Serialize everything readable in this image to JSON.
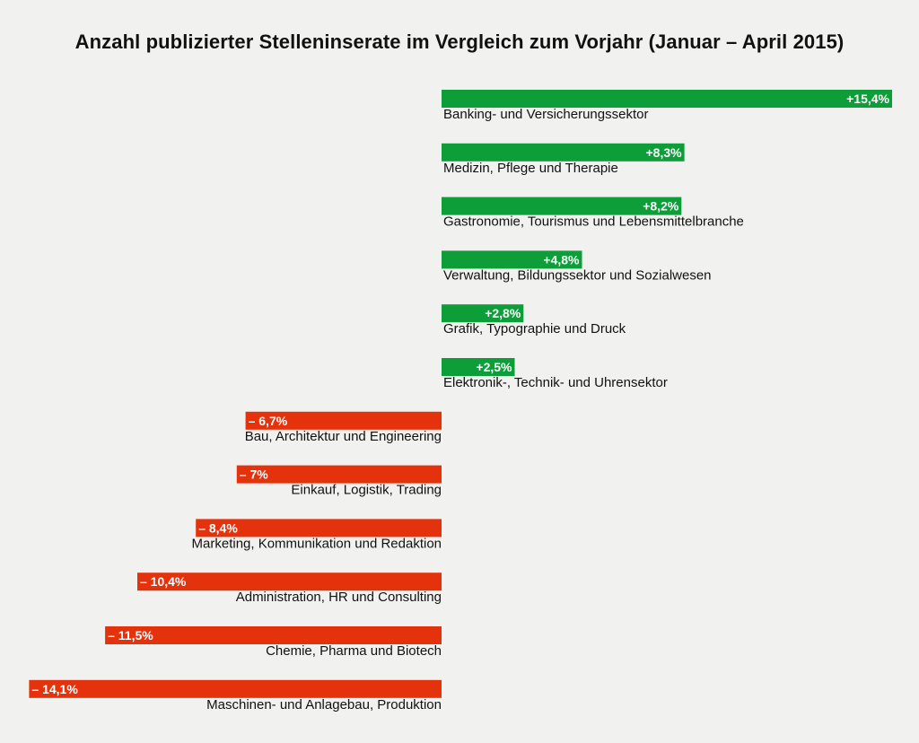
{
  "chart_data": {
    "type": "bar",
    "orientation": "horizontal",
    "title": "Anzahl publizierter Stelleninserate im Vergleich zum Vorjahr (Januar – April 2015)",
    "xlabel": "",
    "ylabel": "",
    "unit": "%",
    "grid": false,
    "legend": "none",
    "xlim": [
      -14.1,
      15.4
    ],
    "colors": {
      "positive": "#0d9e3a",
      "negative": "#e4320c",
      "background": "#f1f1ef"
    },
    "categories": [
      "Banking- und Versicherungssektor",
      "Medizin, Pflege und Therapie",
      "Gastronomie, Tourismus und Lebensmittelbranche",
      "Verwaltung, Bildungssektor und Sozialwesen",
      "Grafik, Typographie und Druck",
      "Elektronik-, Technik- und Uhrensektor",
      "Bau, Architektur und Engineering",
      "Einkauf, Logistik, Trading",
      "Marketing, Kommunikation und Redaktion",
      "Administration, HR und Consulting",
      "Chemie, Pharma und Biotech",
      "Maschinen- und Anlagebau, Produktion"
    ],
    "values": [
      15.4,
      8.3,
      8.2,
      4.8,
      2.8,
      2.5,
      -6.7,
      -7,
      -8.4,
      -10.4,
      -11.5,
      -14.1
    ],
    "value_labels": [
      "+15,4%",
      "+8,3%",
      "+8,2%",
      "+4,8%",
      "+2,8%",
      "+2,5%",
      "– 6,7%",
      "– 7%",
      "– 8,4%",
      "– 10,4%",
      "– 11,5%",
      "– 14,1%"
    ]
  }
}
